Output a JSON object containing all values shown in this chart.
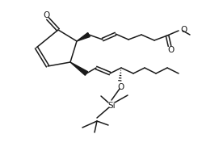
{
  "bg": "#ffffff",
  "lc": "#1a1a1a",
  "lw": 1.1,
  "fw": 2.5,
  "fh": 1.92,
  "dpi": 100,
  "xlim": [
    0,
    250
  ],
  "ylim": [
    192,
    0
  ]
}
